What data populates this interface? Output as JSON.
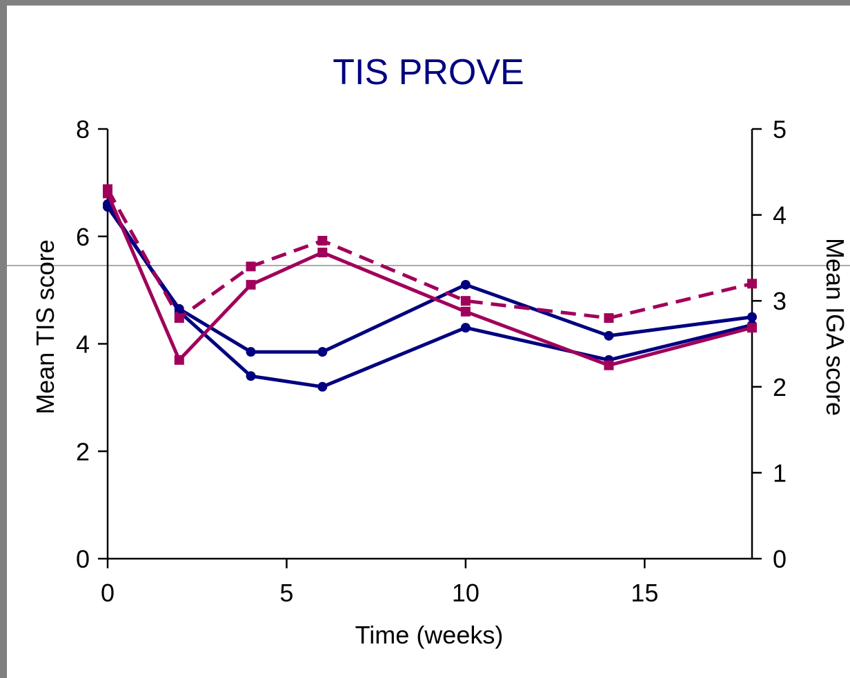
{
  "chart_data": {
    "type": "line",
    "title": "TIS PROVE",
    "xlabel": "Time (weeks)",
    "ylabel": "Mean TIS score",
    "y2label": "Mean IGA score",
    "xlim": [
      0,
      18
    ],
    "ylim": [
      0,
      8
    ],
    "y2lim": [
      0,
      5
    ],
    "xticks": [
      0,
      5,
      10,
      15
    ],
    "yticks": [
      0,
      2,
      4,
      6,
      8
    ],
    "y2ticks": [
      0,
      1,
      2,
      3,
      4,
      5
    ],
    "grid": false,
    "colors": {
      "navy": "#000080",
      "magenta": "#A0005A",
      "title": "#000080"
    },
    "series": [
      {
        "axis": "left",
        "marker": "circle",
        "dash": false,
        "color": "#000080",
        "x": [
          0,
          2,
          4,
          6,
          10,
          14,
          18
        ],
        "values": [
          6.6,
          4.6,
          3.4,
          3.2,
          4.3,
          3.7,
          4.35
        ]
      },
      {
        "axis": "left",
        "marker": "circle",
        "dash": false,
        "color": "#000080",
        "x": [
          0,
          2,
          4,
          6,
          10,
          14,
          18
        ],
        "values": [
          6.55,
          4.65,
          3.85,
          3.85,
          5.1,
          4.15,
          4.5
        ]
      },
      {
        "axis": "left",
        "marker": "square",
        "dash": false,
        "color": "#A0005A",
        "x": [
          0,
          2,
          4,
          6,
          10,
          14,
          18
        ],
        "values": [
          6.8,
          3.7,
          5.1,
          5.7,
          4.6,
          3.6,
          4.3
        ]
      },
      {
        "axis": "right",
        "marker": "square",
        "dash": true,
        "color": "#A0005A",
        "x": [
          0,
          2,
          4,
          6,
          10,
          14,
          18
        ],
        "values": [
          4.3,
          2.8,
          3.4,
          3.7,
          3.0,
          2.8,
          3.2
        ]
      }
    ]
  }
}
